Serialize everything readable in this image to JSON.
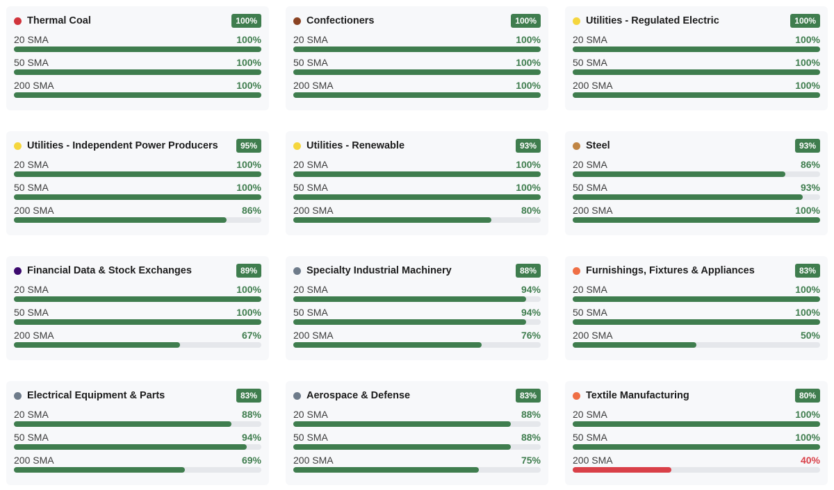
{
  "colors": {
    "good": "#3f7d4e",
    "bad": "#d94048",
    "badge": "#3f7d4e",
    "track": "#e5e7eb"
  },
  "cards": [
    {
      "name": "Thermal Coal",
      "dot": "#d1343c",
      "score": "100%",
      "rows": [
        {
          "label": "20 SMA",
          "pct": "100%",
          "value": 100,
          "status": "good"
        },
        {
          "label": "50 SMA",
          "pct": "100%",
          "value": 100,
          "status": "good"
        },
        {
          "label": "200 SMA",
          "pct": "100%",
          "value": 100,
          "status": "good"
        }
      ]
    },
    {
      "name": "Confectioners",
      "dot": "#8a4222",
      "score": "100%",
      "rows": [
        {
          "label": "20 SMA",
          "pct": "100%",
          "value": 100,
          "status": "good"
        },
        {
          "label": "50 SMA",
          "pct": "100%",
          "value": 100,
          "status": "good"
        },
        {
          "label": "200 SMA",
          "pct": "100%",
          "value": 100,
          "status": "good"
        }
      ]
    },
    {
      "name": "Utilities - Regulated Electric",
      "dot": "#f5d63d",
      "score": "100%",
      "rows": [
        {
          "label": "20 SMA",
          "pct": "100%",
          "value": 100,
          "status": "good"
        },
        {
          "label": "50 SMA",
          "pct": "100%",
          "value": 100,
          "status": "good"
        },
        {
          "label": "200 SMA",
          "pct": "100%",
          "value": 100,
          "status": "good"
        }
      ]
    },
    {
      "name": "Utilities - Independent Power Producers",
      "dot": "#f5d63d",
      "score": "95%",
      "rows": [
        {
          "label": "20 SMA",
          "pct": "100%",
          "value": 100,
          "status": "good"
        },
        {
          "label": "50 SMA",
          "pct": "100%",
          "value": 100,
          "status": "good"
        },
        {
          "label": "200 SMA",
          "pct": "86%",
          "value": 86,
          "status": "good"
        }
      ]
    },
    {
      "name": "Utilities - Renewable",
      "dot": "#f5d63d",
      "score": "93%",
      "rows": [
        {
          "label": "20 SMA",
          "pct": "100%",
          "value": 100,
          "status": "good"
        },
        {
          "label": "50 SMA",
          "pct": "100%",
          "value": 100,
          "status": "good"
        },
        {
          "label": "200 SMA",
          "pct": "80%",
          "value": 80,
          "status": "good"
        }
      ]
    },
    {
      "name": "Steel",
      "dot": "#c08544",
      "score": "93%",
      "rows": [
        {
          "label": "20 SMA",
          "pct": "86%",
          "value": 86,
          "status": "good"
        },
        {
          "label": "50 SMA",
          "pct": "93%",
          "value": 93,
          "status": "good"
        },
        {
          "label": "200 SMA",
          "pct": "100%",
          "value": 100,
          "status": "good"
        }
      ]
    },
    {
      "name": "Financial Data & Stock Exchanges",
      "dot": "#3c0a6e",
      "score": "89%",
      "rows": [
        {
          "label": "20 SMA",
          "pct": "100%",
          "value": 100,
          "status": "good"
        },
        {
          "label": "50 SMA",
          "pct": "100%",
          "value": 100,
          "status": "good"
        },
        {
          "label": "200 SMA",
          "pct": "67%",
          "value": 67,
          "status": "good"
        }
      ]
    },
    {
      "name": "Specialty Industrial Machinery",
      "dot": "#6e7b8a",
      "score": "88%",
      "rows": [
        {
          "label": "20 SMA",
          "pct": "94%",
          "value": 94,
          "status": "good"
        },
        {
          "label": "50 SMA",
          "pct": "94%",
          "value": 94,
          "status": "good"
        },
        {
          "label": "200 SMA",
          "pct": "76%",
          "value": 76,
          "status": "good"
        }
      ]
    },
    {
      "name": "Furnishings, Fixtures & Appliances",
      "dot": "#ef6f45",
      "score": "83%",
      "rows": [
        {
          "label": "20 SMA",
          "pct": "100%",
          "value": 100,
          "status": "good"
        },
        {
          "label": "50 SMA",
          "pct": "100%",
          "value": 100,
          "status": "good"
        },
        {
          "label": "200 SMA",
          "pct": "50%",
          "value": 50,
          "status": "good"
        }
      ]
    },
    {
      "name": "Electrical Equipment & Parts",
      "dot": "#6e7b8a",
      "score": "83%",
      "rows": [
        {
          "label": "20 SMA",
          "pct": "88%",
          "value": 88,
          "status": "good"
        },
        {
          "label": "50 SMA",
          "pct": "94%",
          "value": 94,
          "status": "good"
        },
        {
          "label": "200 SMA",
          "pct": "69%",
          "value": 69,
          "status": "good"
        }
      ]
    },
    {
      "name": "Aerospace & Defense",
      "dot": "#6e7b8a",
      "score": "83%",
      "rows": [
        {
          "label": "20 SMA",
          "pct": "88%",
          "value": 88,
          "status": "good"
        },
        {
          "label": "50 SMA",
          "pct": "88%",
          "value": 88,
          "status": "good"
        },
        {
          "label": "200 SMA",
          "pct": "75%",
          "value": 75,
          "status": "good"
        }
      ]
    },
    {
      "name": "Textile Manufacturing",
      "dot": "#ef6f45",
      "score": "80%",
      "rows": [
        {
          "label": "20 SMA",
          "pct": "100%",
          "value": 100,
          "status": "good"
        },
        {
          "label": "50 SMA",
          "pct": "100%",
          "value": 100,
          "status": "good"
        },
        {
          "label": "200 SMA",
          "pct": "40%",
          "value": 40,
          "status": "bad"
        }
      ]
    }
  ]
}
